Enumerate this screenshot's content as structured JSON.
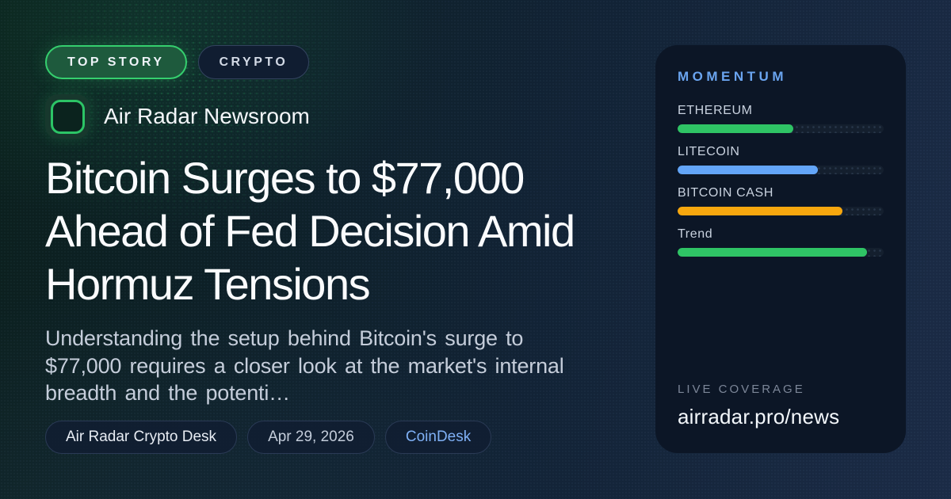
{
  "badges": {
    "top_story": "TOP STORY",
    "category": "CRYPTO"
  },
  "brand": {
    "name": "Air Radar Newsroom"
  },
  "headline": "Bitcoin Surges to $77,000 Ahead of Fed Decision Amid Hormuz Tensions",
  "summary": "Understanding the setup behind Bitcoin's surge to $77,000 requires a closer look at the market's internal breadth and the potenti…",
  "meta": {
    "author": "Air Radar Crypto Desk",
    "date": "Apr 29, 2026",
    "source": "CoinDesk"
  },
  "momentum": {
    "title": "MOMENTUM",
    "bars": [
      {
        "label": "ETHEREUM",
        "value_pct": 56,
        "color": "#2fc465"
      },
      {
        "label": "LITECOIN",
        "value_pct": 68,
        "color": "#63a5f8"
      },
      {
        "label": "BITCOIN CASH",
        "value_pct": 80,
        "color": "#f7a70e"
      },
      {
        "label": "Trend",
        "value_pct": 92,
        "color": "#2fc465"
      }
    ],
    "footer_label": "LIVE COVERAGE",
    "footer_url": "airradar.pro/news"
  },
  "colors": {
    "accent_green": "#2fc465",
    "accent_blue": "#63a5f8",
    "accent_orange": "#f7a70e",
    "link_blue": "#7fb0f5",
    "panel_bg": "#0c1626",
    "badge_green_border": "#35cf6e"
  }
}
